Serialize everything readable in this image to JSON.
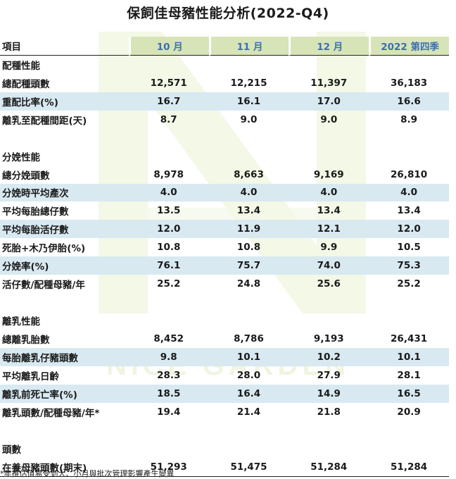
{
  "title": "保飼佳母豬性能分析(2022-Q4)",
  "header": {
    "item_label": "項目",
    "columns": [
      "10 月",
      "11 月",
      "12 月",
      "2022 第四季"
    ]
  },
  "sections": [
    {
      "name": "配種性能",
      "rows": [
        {
          "label": "總配種頭數",
          "values": [
            "12,571",
            "12,215",
            "11,397",
            "36,183"
          ]
        },
        {
          "label": "重配比率(%)",
          "values": [
            "16.7",
            "16.1",
            "17.0",
            "16.6"
          ]
        },
        {
          "label": "離乳至配種間距(天)",
          "values": [
            "8.7",
            "9.0",
            "9.0",
            "8.9"
          ]
        }
      ]
    },
    {
      "name": "分娩性能",
      "rows": [
        {
          "label": "總分娩頭數",
          "values": [
            "8,978",
            "8,663",
            "9,169",
            "26,810"
          ]
        },
        {
          "label": "分娩時平均產次",
          "values": [
            "4.0",
            "4.0",
            "4.0",
            "4.0"
          ]
        },
        {
          "label": "平均每胎總仔數",
          "values": [
            "13.5",
            "13.4",
            "13.4",
            "13.4"
          ]
        },
        {
          "label": "平均每胎活仔數",
          "values": [
            "12.0",
            "11.9",
            "12.1",
            "12.0"
          ]
        },
        {
          "label": "死胎+木乃伊胎(%)",
          "values": [
            "10.8",
            "10.8",
            "9.9",
            "10.5"
          ]
        },
        {
          "label": "分娩率(%)",
          "values": [
            "76.1",
            "75.7",
            "74.0",
            "75.3"
          ]
        },
        {
          "label": "活仔數/配種母豬/年",
          "values": [
            "25.2",
            "24.8",
            "25.6",
            "25.2"
          ]
        }
      ]
    },
    {
      "name": "離乳性能",
      "rows": [
        {
          "label": "總離乳胎數",
          "values": [
            "8,452",
            "8,786",
            "9,193",
            "26,431"
          ]
        },
        {
          "label": "每胎離乳仔豬頭數",
          "values": [
            "9.8",
            "10.1",
            "10.2",
            "10.1"
          ]
        },
        {
          "label": "平均離乳日齡",
          "values": [
            "28.3",
            "28.0",
            "27.9",
            "28.1"
          ]
        },
        {
          "label": "離乳前死亡率(%)",
          "values": [
            "18.5",
            "16.4",
            "14.9",
            "16.5"
          ]
        },
        {
          "label": "離乳頭數/配種母豬/年*",
          "values": [
            "19.4",
            "21.4",
            "21.8",
            "20.9"
          ]
        }
      ]
    },
    {
      "name": "頭數",
      "rows": [
        {
          "label": "在養母豬頭數(期末)",
          "values": [
            "51,293",
            "51,475",
            "51,284",
            "51,284"
          ]
        }
      ]
    }
  ],
  "watermark_text": "NICE GARDEN",
  "footnote": "*年推估值易受到大、小月與批次管理影響產生變異",
  "colors": {
    "header_fill": "#d7e4b8",
    "header_text": "#3c6fb4",
    "band_fill": "#d6e8f0",
    "watermark": "#e4efc6"
  }
}
